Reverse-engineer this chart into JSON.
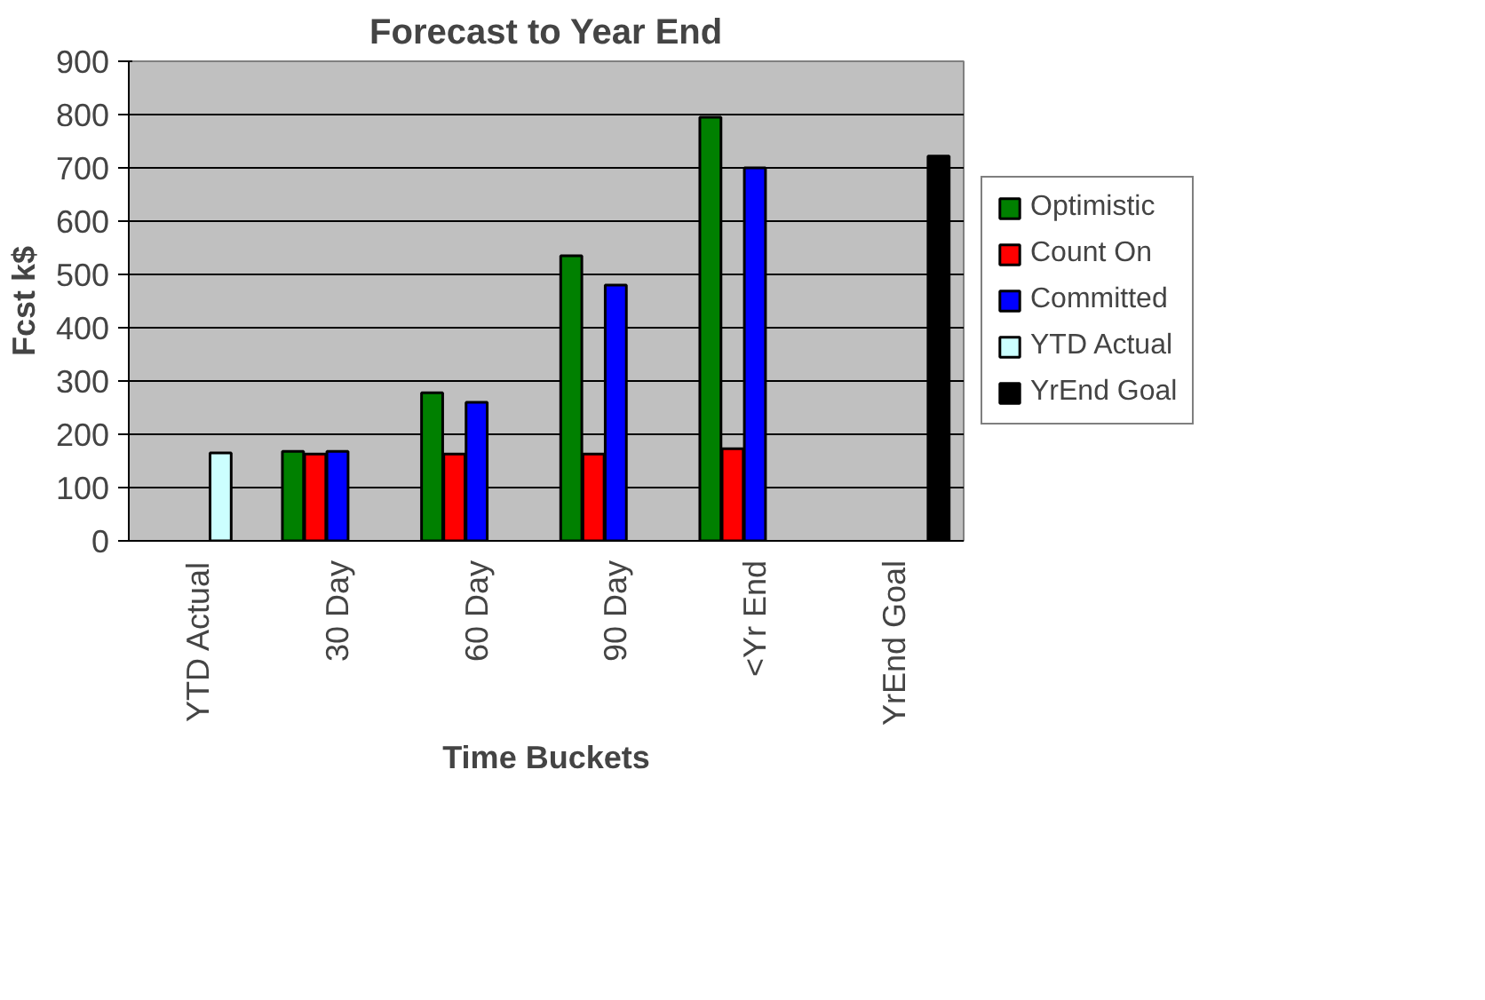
{
  "chart_data": {
    "type": "bar",
    "title": "Forecast to Year End",
    "xlabel": "Time Buckets",
    "ylabel": "Fcst k$",
    "categories": [
      "YTD Actual",
      "30 Day",
      "60 Day",
      "90 Day",
      "<Yr End",
      "YrEnd Goal"
    ],
    "series": [
      {
        "name": "Optimistic",
        "color": "#008000",
        "values": [
          null,
          168,
          278,
          535,
          795,
          null
        ]
      },
      {
        "name": "Count On",
        "color": "#ff0000",
        "values": [
          null,
          163,
          163,
          163,
          173,
          null
        ]
      },
      {
        "name": "Committed",
        "color": "#0000ff",
        "values": [
          null,
          168,
          260,
          480,
          700,
          null
        ]
      },
      {
        "name": "YTD Actual",
        "color": "#ccffff",
        "values": [
          165,
          null,
          null,
          null,
          null,
          null
        ]
      },
      {
        "name": "YrEnd Goal",
        "color": "#000000",
        "values": [
          null,
          null,
          null,
          null,
          null,
          722
        ]
      }
    ],
    "ylim": [
      0,
      900
    ],
    "yticks": [
      0,
      100,
      200,
      300,
      400,
      500,
      600,
      700,
      800,
      900
    ],
    "grid": "y",
    "legend": "right"
  }
}
